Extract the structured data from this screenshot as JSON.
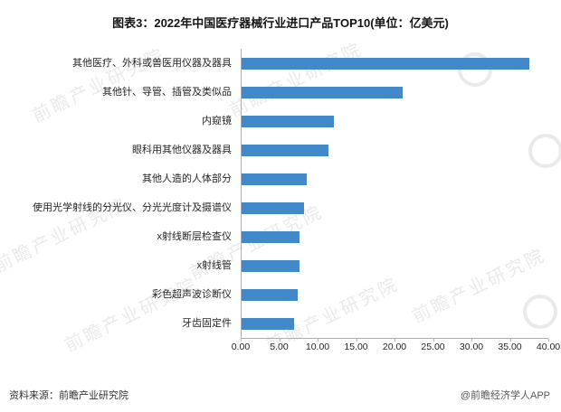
{
  "chart_data": {
    "type": "bar",
    "orientation": "horizontal",
    "title": "图表3：2022年中国医疗器械行业进口产品TOP10(单位：亿美元)",
    "categories": [
      "其他医疗、外科或兽医用仪器及器具",
      "其他针、导管、插管及类似品",
      "内窥镜",
      "眼科用其他仪器及器具",
      "其他人造的人体部分",
      "使用光学射线的分光仪、分光光度计及摄谱仪",
      "x射线断层检查仪",
      "x射线管",
      "彩色超声波诊断仪",
      "牙齿固定件"
    ],
    "values": [
      37.5,
      21.0,
      12.0,
      11.3,
      8.5,
      8.2,
      7.6,
      7.5,
      7.3,
      6.9
    ],
    "xlabel": "",
    "ylabel": "",
    "xlim": [
      0,
      40
    ],
    "xticks": [
      "0.00",
      "5.00",
      "10.00",
      "15.00",
      "20.00",
      "25.00",
      "30.00",
      "35.00",
      "40.00"
    ],
    "grid": false,
    "legend": false,
    "bar_color": "#4189c8"
  },
  "footer": {
    "source": "资料来源：前瞻产业研究院",
    "credit": "@前瞻经济学人APP"
  },
  "watermark": {
    "text": "前瞻产业研究院"
  }
}
